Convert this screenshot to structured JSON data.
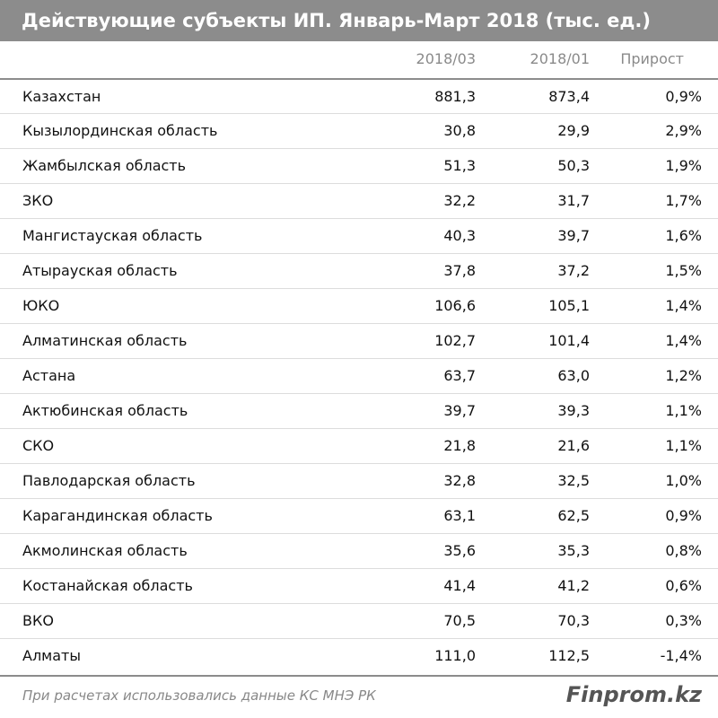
{
  "header": {
    "title": "Действующие субъекты ИП. Январь-Март 2018 (тыс. ед.)"
  },
  "table": {
    "columns": [
      "2018/03",
      "2018/01",
      "Прирост"
    ],
    "rows": [
      [
        "Казахстан",
        "881,3",
        "873,4",
        "0,9%"
      ],
      [
        "Кызылординская область",
        "30,8",
        "29,9",
        "2,9%"
      ],
      [
        "Жамбылская область",
        "51,3",
        "50,3",
        "1,9%"
      ],
      [
        "ЗКО",
        "32,2",
        "31,7",
        "1,7%"
      ],
      [
        "Мангистауская область",
        "40,3",
        "39,7",
        "1,6%"
      ],
      [
        "Атырауская область",
        "37,8",
        "37,2",
        "1,5%"
      ],
      [
        "ЮКО",
        "106,6",
        "105,1",
        "1,4%"
      ],
      [
        "Алматинская область",
        "102,7",
        "101,4",
        "1,4%"
      ],
      [
        "Астана",
        "63,7",
        "63,0",
        "1,2%"
      ],
      [
        "Актюбинская область",
        "39,7",
        "39,3",
        "1,1%"
      ],
      [
        "СКО",
        "21,8",
        "21,6",
        "1,1%"
      ],
      [
        "Павлодарская область",
        "32,8",
        "32,5",
        "1,0%"
      ],
      [
        "Карагандинская область",
        "63,1",
        "62,5",
        "0,9%"
      ],
      [
        "Акмолинская область",
        "35,6",
        "35,3",
        "0,8%"
      ],
      [
        "Костанайская область",
        "41,4",
        "41,2",
        "0,6%"
      ],
      [
        "ВКО",
        "70,5",
        "70,3",
        "0,3%"
      ],
      [
        "Алматы",
        "111,0",
        "112,5",
        "-1,4%"
      ]
    ]
  },
  "footer": {
    "note": "При расчетах использовались данные КС МНЭ РК",
    "brand": "Finprom.kz"
  }
}
